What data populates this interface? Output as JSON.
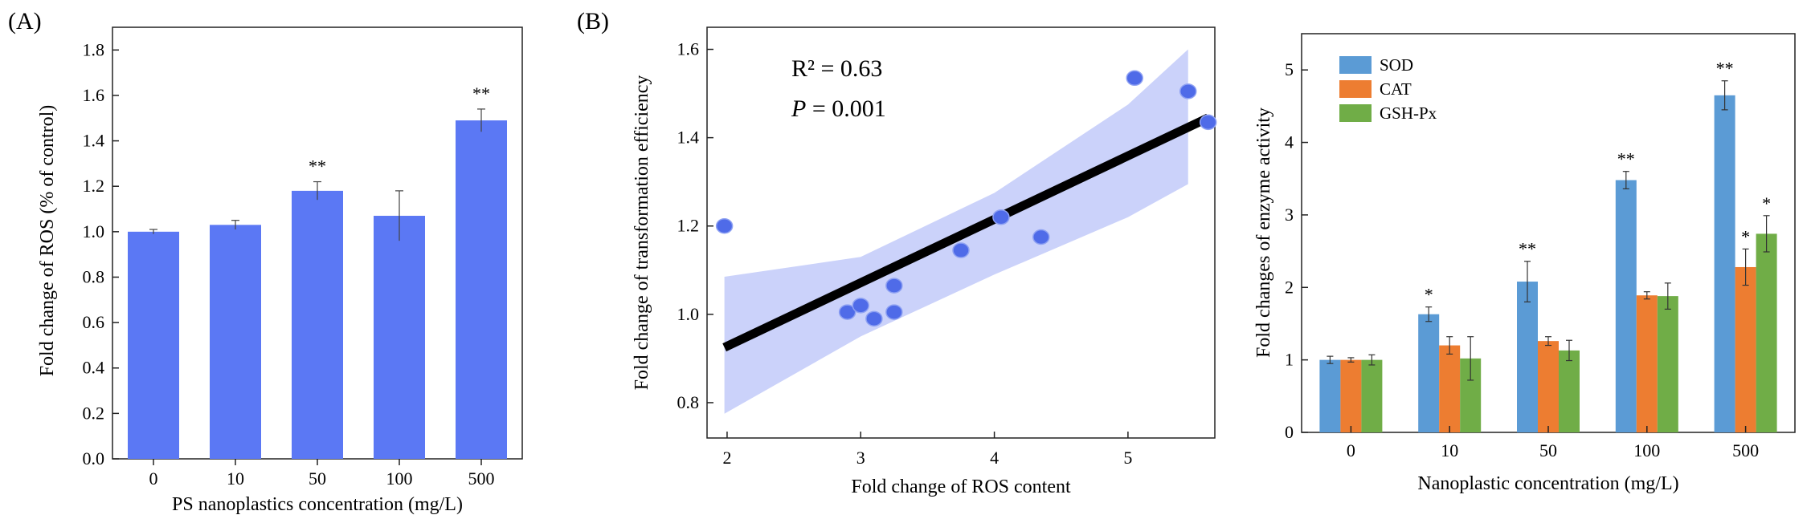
{
  "chart_data": [
    {
      "type": "bar",
      "panel_label": "(A)",
      "categories": [
        "0",
        "10",
        "50",
        "100",
        "500"
      ],
      "values": [
        1.0,
        1.03,
        1.18,
        1.07,
        1.49
      ],
      "errors": [
        0.01,
        0.02,
        0.04,
        0.11,
        0.05
      ],
      "significance": [
        "",
        "",
        "**",
        "",
        "**"
      ],
      "bar_color": "#5b78f4",
      "xlabel": "PS nanoplastics concentration (mg/L)",
      "ylabel": "Fold change of ROS (% of control)",
      "ylim": [
        0,
        1.9
      ],
      "yticks": [
        0.0,
        0.2,
        0.4,
        0.6,
        0.8,
        1.0,
        1.2,
        1.4,
        1.6,
        1.8
      ],
      "grid": false
    },
    {
      "type": "scatter",
      "panel_label": "(B)",
      "points": [
        {
          "x": 1.98,
          "y": 1.2
        },
        {
          "x": 2.9,
          "y": 1.005
        },
        {
          "x": 3.0,
          "y": 1.02
        },
        {
          "x": 3.1,
          "y": 0.99
        },
        {
          "x": 3.25,
          "y": 1.065
        },
        {
          "x": 3.25,
          "y": 1.005
        },
        {
          "x": 3.75,
          "y": 1.145
        },
        {
          "x": 4.05,
          "y": 1.22
        },
        {
          "x": 4.35,
          "y": 1.175
        },
        {
          "x": 5.05,
          "y": 1.535
        },
        {
          "x": 5.45,
          "y": 1.505
        },
        {
          "x": 5.6,
          "y": 1.435
        }
      ],
      "fit_line": {
        "x": [
          1.98,
          5.6
        ],
        "y": [
          0.925,
          1.445
        ]
      },
      "confidence_band": {
        "x": [
          1.98,
          3.0,
          4.0,
          5.0,
          5.45
        ],
        "upper": [
          1.085,
          1.13,
          1.275,
          1.475,
          1.6
        ],
        "lower": [
          0.775,
          0.95,
          1.09,
          1.22,
          1.295
        ]
      },
      "point_color": "#4f6be8",
      "band_color": "#c5cdf9",
      "line_color": "#000000",
      "stats": {
        "r2_label": "R² = 0.63",
        "p_italic": "P",
        "p_value": " = 0.001"
      },
      "xlabel": "Fold change of ROS content",
      "ylabel": "Fold change of transformation efficiency",
      "xlim": [
        1.85,
        5.65
      ],
      "ylim": [
        0.72,
        1.65
      ],
      "xticks": [
        2,
        3,
        4,
        5
      ],
      "yticks": [
        0.8,
        1.0,
        1.2,
        1.4,
        1.6
      ],
      "grid": false
    },
    {
      "type": "bar",
      "categories": [
        "0",
        "10",
        "50",
        "100",
        "500"
      ],
      "series": [
        {
          "name": "SOD",
          "color": "#5b9bd5",
          "values": [
            1.0,
            1.63,
            2.08,
            3.48,
            4.65
          ],
          "errors": [
            0.05,
            0.1,
            0.28,
            0.12,
            0.2
          ],
          "significance": [
            "",
            "*",
            "**",
            "**",
            "**"
          ]
        },
        {
          "name": "CAT",
          "color": "#ed7d31",
          "values": [
            1.0,
            1.2,
            1.26,
            1.89,
            2.28
          ],
          "errors": [
            0.03,
            0.12,
            0.06,
            0.05,
            0.25
          ],
          "significance": [
            "",
            "",
            "",
            "",
            "*"
          ]
        },
        {
          "name": "GSH-Px",
          "color": "#70ad47",
          "values": [
            1.0,
            1.02,
            1.13,
            1.88,
            2.74
          ],
          "errors": [
            0.07,
            0.3,
            0.14,
            0.18,
            0.25
          ],
          "significance": [
            "",
            "",
            "",
            "",
            "*"
          ]
        }
      ],
      "xlabel": "Nanoplastic concentration (mg/L)",
      "ylabel": "Fold changes of enzyme activity",
      "ylim": [
        0,
        5.5
      ],
      "yticks": [
        0,
        1,
        2,
        3,
        4,
        5
      ],
      "legend": "top-left",
      "grid": false
    }
  ]
}
